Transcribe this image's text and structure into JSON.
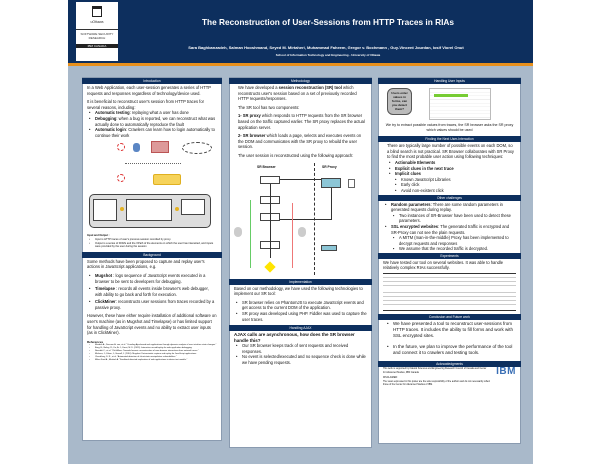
{
  "header": {
    "title": "The Reconstruction of User-Sessions from HTTP Traces in RIAs",
    "authors": "Sara Baghbanzadeh, Salman Hooshmand, Seyed M. Mirtaheri, Muhammad Faheem, Gregor v. Bochmann , Guy-Vincent Jourdan, Iosif Viorel Onut",
    "affiliation": "School of Information Technology and Engineering - University of Ottawa",
    "logo_text": "uOttawa",
    "logo_sub1": "SOFTWARE SECURITY RESEARCH",
    "logo_sub2": "IBM CANADA"
  },
  "intro": {
    "heading": "Introduction",
    "p1": "In a Web Application, each user-session generates a series of HTTP requests and responses regardless of technology/device used.",
    "p2": "It is beneficial to reconstruct user's session from HTTP traces for several reasons, including:",
    "items": [
      {
        "b": "Automatic testing",
        "t": ": replaying what a user has done"
      },
      {
        "b": "Debugging",
        "t": ": when a bug is reported, we can reconstruct what was actually done to automatically reproduce the fault"
      },
      {
        "b": "Automatic login",
        "t": ": Crawlers can learn how to login automatically to continue their work"
      }
    ],
    "io_title": "Input and Output :",
    "io": [
      "Input is HTTP traces of user's previous session recorded by proxy.",
      "Output is a series of DOMs and the XPath of the elements on which the user has interacted, and inputs were provided by the user during the session"
    ]
  },
  "background": {
    "heading": "Background",
    "p1": "Some methods have been proposed to capture and replay user's actions in JavaScript applications, e.g.",
    "items": [
      {
        "b": "Mugshot",
        "t": " : logs sequence of JavaScript events executed in a browser to be sent to developers for debugging."
      },
      {
        "b": "Timelapse",
        "t": " : records all events inside browser's web debugger, with ability to go back and forth for execution."
      },
      {
        "b": "ClickMiner",
        "t": ": reconstructs user sessions from traces recorded by a passive proxy."
      }
    ],
    "p2": "However, these have either require installation of additional software on user's machine (as in Mugshot and Timelapse) or has limited support for handling of JavaScript events and no ability to extract user inputs (as in ClickMiner).",
    "ref_title": "References",
    "refs": [
      "Mesbah A., Deursen A. van, et al. \"Crawling Ajax-based web applications through dynamic analysis of user interface state changes.\"",
      "Burg, B., Bailey, R., Ko, A. J., Ernst, M. D. (2013). Interactive record/replay for web application debugging.",
      "Neasbitt C., et al. \"ClickMiner: Towards forensic reconstruction of user-browser interactions from network traces.\"",
      "Mickens, J., Elson, J., Howell, J. (2010). Mugshot: Deterministic capture and replay for JavaScript applications.",
      "Choudhary, S. R., et al. \"Automated detection of client-state manipulation vulnerabilities.\"",
      "Milani Fard A., Mesbah A. \"Feedback-directed exploration of web applications to derive test models.\""
    ]
  },
  "method": {
    "heading": "Methodology",
    "p1a": "We have developed a ",
    "p1b": "session reconstruction (SR) tool",
    "p1c": " which reconstructs user's session based on a set of previously recorded HTTP requests/responses.",
    "p2": "The SR tool has two components:",
    "c1b": "1- SR proxy",
    "c1t": " which responds to HTTP requests from the SR browser based on the traffic captured earlier. The SR proxy replaces the actual application server.",
    "c2b": "2- SR browser",
    "c2t": " which loads a page, selects and executes events on the DOM and communicates with the SR proxy to rebuild the user session.",
    "p3": "The user session is reconstructed using the following approach:",
    "diagram": {
      "browser": "SR Browser",
      "proxy": "SR Proxy"
    }
  },
  "impl": {
    "heading": "Implementation",
    "p1": "Based on our methodology, we have used the following technologies to implement our SR tool:",
    "items": [
      "SR browser relies on PhantomJS to execute JavaScript events and get access to the current DOM of the application.",
      "SR proxy was developed using PHP. Fiddler was used to capture the user traces."
    ]
  },
  "ajax": {
    "heading": "Handling AJAX",
    "q": "AJAX calls are asynchronous, how does the SR browser handle this?",
    "items": [
      "Our SR browser keeps track of sent requests and received responses.",
      "No event is selected/executed and no sequence check is done while we have pending requests."
    ]
  },
  "inputs": {
    "heading": "Handling User Inputs",
    "bubble": "Users enter values in forms, can you detect them?",
    "p1": "We try to extract possible values from traces, the SR browser asks the SR proxy which values should be used"
  },
  "next": {
    "heading": "Finding the Next User-Interaction",
    "p1": "There are typically large number of possible events on each DOM, so a blind search is not practical. SR Browser collaborates with SR Proxy to find the most probable user action using following techniques:",
    "items": [
      "Actionable Elements",
      "Explicit clues in the next trace",
      "Implicit clues"
    ],
    "sub": [
      "Known JavaScript Libraries",
      "Early click",
      "Avoid non-existent click"
    ]
  },
  "other": {
    "heading": "Other challenges",
    "i1b": "Random parameters",
    "i1t": ": There are some random parameters in generated requests during replay.",
    "i1s": "Two instances of SR-Browser have been used to detect these parameters.",
    "i2b": "SSL encrypted websites",
    "i2t": ": The generated traffic is encrypted and SR-Proxy can not see the plain requests.",
    "i2s": [
      "A MITM (man-in-the-middle) Proxy has been implemented to decrypt requests and responses",
      "We assume that the recorded traffic is decrypted."
    ]
  },
  "exp": {
    "heading": "Experiments",
    "p1": "We have tested our tool on several websites. It was able to handle relatively complex RIAs successfully."
  },
  "concl": {
    "heading": "Conclusion and Future work",
    "items": [
      "We have presented a tool to reconstruct user-sessions from HTTP traces. It includes the ability to fill forms and work with SSL encrypted sites.",
      "In the future, we plan to improve the performance of the tool and connect it to crawlers and testing tools."
    ]
  },
  "ack": {
    "heading": "Acknowledgments",
    "p1": "This work is supported by Natural Sciences and Engineering Research Council of Canada and Center for Advanced Studies, IBM Canada",
    "disc_title": "DISCLAIMER:",
    "disc": "The views expressed in this poster are the sole responsibility of the authors and do not necessarily reflect those of the Center for Advanced Studies of IBM.",
    "logo": "IBM"
  },
  "colors": {
    "navy": "#0d2f5e",
    "accent": "#e8901c",
    "background": "#a9b9ca"
  }
}
